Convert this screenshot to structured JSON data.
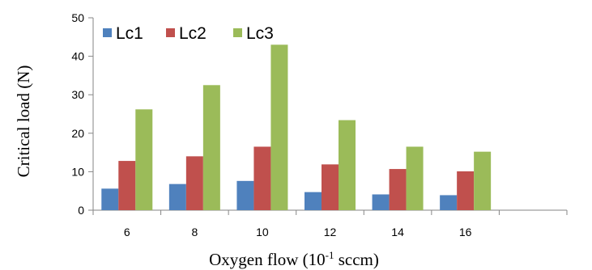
{
  "chart_data": {
    "type": "bar",
    "categories": [
      "6",
      "8",
      "10",
      "12",
      "14",
      "16",
      ""
    ],
    "series": [
      {
        "name": "Lc1",
        "color": "#4F81BD",
        "values": [
          5.6,
          6.8,
          7.6,
          4.7,
          4.1,
          3.9,
          null
        ]
      },
      {
        "name": "Lc2",
        "color": "#C0504D",
        "values": [
          12.8,
          14.0,
          16.5,
          11.9,
          10.7,
          10.1,
          null
        ]
      },
      {
        "name": "Lc3",
        "color": "#9BBB59",
        "values": [
          26.2,
          32.5,
          43.0,
          23.4,
          16.5,
          15.2,
          null
        ]
      }
    ],
    "xlabel_text": "Oxygen flow (10",
    "xlabel_sup": "-1",
    "xlabel_unit": " sccm)",
    "ylabel": "Critical  load (N)",
    "yticks": [
      "0",
      "10",
      "20",
      "30",
      "40",
      "50"
    ],
    "ylim": [
      0,
      50
    ],
    "grid": false,
    "legend_position": "top-left"
  }
}
